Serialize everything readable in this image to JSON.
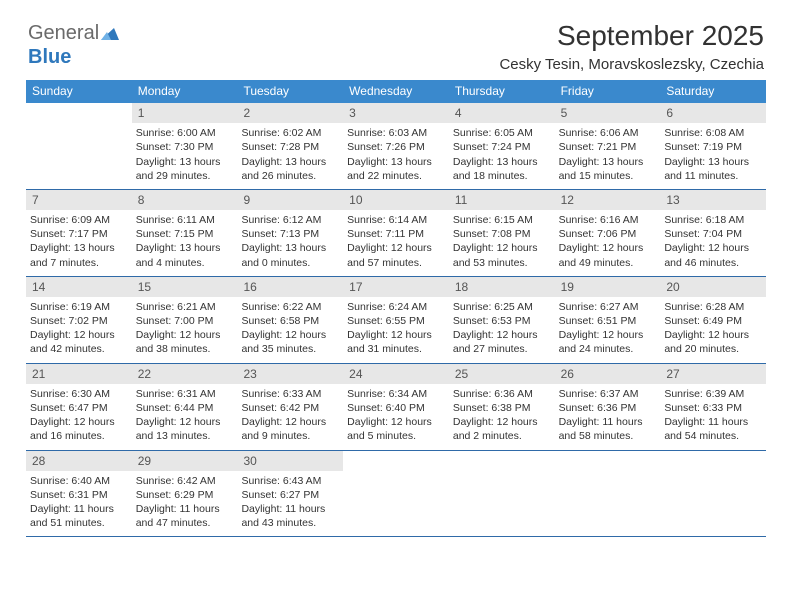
{
  "brand": {
    "part1": "General",
    "part2": "Blue"
  },
  "title": "September 2025",
  "location": "Cesky Tesin, Moravskoslezsky, Czechia",
  "colors": {
    "header_bg": "#3a89cd",
    "header_text": "#ffffff",
    "band_bg": "#e7e7e7",
    "rule": "#2f6aa8",
    "text": "#333333",
    "brand_gray": "#6a6a6a",
    "brand_blue": "#2f78bc"
  },
  "dow": [
    "Sunday",
    "Monday",
    "Tuesday",
    "Wednesday",
    "Thursday",
    "Friday",
    "Saturday"
  ],
  "weeks": [
    [
      {
        "blank": true
      },
      {
        "n": "1",
        "sr": "Sunrise: 6:00 AM",
        "ss": "Sunset: 7:30 PM",
        "dl": "Daylight: 13 hours and 29 minutes."
      },
      {
        "n": "2",
        "sr": "Sunrise: 6:02 AM",
        "ss": "Sunset: 7:28 PM",
        "dl": "Daylight: 13 hours and 26 minutes."
      },
      {
        "n": "3",
        "sr": "Sunrise: 6:03 AM",
        "ss": "Sunset: 7:26 PM",
        "dl": "Daylight: 13 hours and 22 minutes."
      },
      {
        "n": "4",
        "sr": "Sunrise: 6:05 AM",
        "ss": "Sunset: 7:24 PM",
        "dl": "Daylight: 13 hours and 18 minutes."
      },
      {
        "n": "5",
        "sr": "Sunrise: 6:06 AM",
        "ss": "Sunset: 7:21 PM",
        "dl": "Daylight: 13 hours and 15 minutes."
      },
      {
        "n": "6",
        "sr": "Sunrise: 6:08 AM",
        "ss": "Sunset: 7:19 PM",
        "dl": "Daylight: 13 hours and 11 minutes."
      }
    ],
    [
      {
        "n": "7",
        "sr": "Sunrise: 6:09 AM",
        "ss": "Sunset: 7:17 PM",
        "dl": "Daylight: 13 hours and 7 minutes."
      },
      {
        "n": "8",
        "sr": "Sunrise: 6:11 AM",
        "ss": "Sunset: 7:15 PM",
        "dl": "Daylight: 13 hours and 4 minutes."
      },
      {
        "n": "9",
        "sr": "Sunrise: 6:12 AM",
        "ss": "Sunset: 7:13 PM",
        "dl": "Daylight: 13 hours and 0 minutes."
      },
      {
        "n": "10",
        "sr": "Sunrise: 6:14 AM",
        "ss": "Sunset: 7:11 PM",
        "dl": "Daylight: 12 hours and 57 minutes."
      },
      {
        "n": "11",
        "sr": "Sunrise: 6:15 AM",
        "ss": "Sunset: 7:08 PM",
        "dl": "Daylight: 12 hours and 53 minutes."
      },
      {
        "n": "12",
        "sr": "Sunrise: 6:16 AM",
        "ss": "Sunset: 7:06 PM",
        "dl": "Daylight: 12 hours and 49 minutes."
      },
      {
        "n": "13",
        "sr": "Sunrise: 6:18 AM",
        "ss": "Sunset: 7:04 PM",
        "dl": "Daylight: 12 hours and 46 minutes."
      }
    ],
    [
      {
        "n": "14",
        "sr": "Sunrise: 6:19 AM",
        "ss": "Sunset: 7:02 PM",
        "dl": "Daylight: 12 hours and 42 minutes."
      },
      {
        "n": "15",
        "sr": "Sunrise: 6:21 AM",
        "ss": "Sunset: 7:00 PM",
        "dl": "Daylight: 12 hours and 38 minutes."
      },
      {
        "n": "16",
        "sr": "Sunrise: 6:22 AM",
        "ss": "Sunset: 6:58 PM",
        "dl": "Daylight: 12 hours and 35 minutes."
      },
      {
        "n": "17",
        "sr": "Sunrise: 6:24 AM",
        "ss": "Sunset: 6:55 PM",
        "dl": "Daylight: 12 hours and 31 minutes."
      },
      {
        "n": "18",
        "sr": "Sunrise: 6:25 AM",
        "ss": "Sunset: 6:53 PM",
        "dl": "Daylight: 12 hours and 27 minutes."
      },
      {
        "n": "19",
        "sr": "Sunrise: 6:27 AM",
        "ss": "Sunset: 6:51 PM",
        "dl": "Daylight: 12 hours and 24 minutes."
      },
      {
        "n": "20",
        "sr": "Sunrise: 6:28 AM",
        "ss": "Sunset: 6:49 PM",
        "dl": "Daylight: 12 hours and 20 minutes."
      }
    ],
    [
      {
        "n": "21",
        "sr": "Sunrise: 6:30 AM",
        "ss": "Sunset: 6:47 PM",
        "dl": "Daylight: 12 hours and 16 minutes."
      },
      {
        "n": "22",
        "sr": "Sunrise: 6:31 AM",
        "ss": "Sunset: 6:44 PM",
        "dl": "Daylight: 12 hours and 13 minutes."
      },
      {
        "n": "23",
        "sr": "Sunrise: 6:33 AM",
        "ss": "Sunset: 6:42 PM",
        "dl": "Daylight: 12 hours and 9 minutes."
      },
      {
        "n": "24",
        "sr": "Sunrise: 6:34 AM",
        "ss": "Sunset: 6:40 PM",
        "dl": "Daylight: 12 hours and 5 minutes."
      },
      {
        "n": "25",
        "sr": "Sunrise: 6:36 AM",
        "ss": "Sunset: 6:38 PM",
        "dl": "Daylight: 12 hours and 2 minutes."
      },
      {
        "n": "26",
        "sr": "Sunrise: 6:37 AM",
        "ss": "Sunset: 6:36 PM",
        "dl": "Daylight: 11 hours and 58 minutes."
      },
      {
        "n": "27",
        "sr": "Sunrise: 6:39 AM",
        "ss": "Sunset: 6:33 PM",
        "dl": "Daylight: 11 hours and 54 minutes."
      }
    ],
    [
      {
        "n": "28",
        "sr": "Sunrise: 6:40 AM",
        "ss": "Sunset: 6:31 PM",
        "dl": "Daylight: 11 hours and 51 minutes."
      },
      {
        "n": "29",
        "sr": "Sunrise: 6:42 AM",
        "ss": "Sunset: 6:29 PM",
        "dl": "Daylight: 11 hours and 47 minutes."
      },
      {
        "n": "30",
        "sr": "Sunrise: 6:43 AM",
        "ss": "Sunset: 6:27 PM",
        "dl": "Daylight: 11 hours and 43 minutes."
      },
      {
        "blank": true
      },
      {
        "blank": true
      },
      {
        "blank": true
      },
      {
        "blank": true
      }
    ]
  ]
}
